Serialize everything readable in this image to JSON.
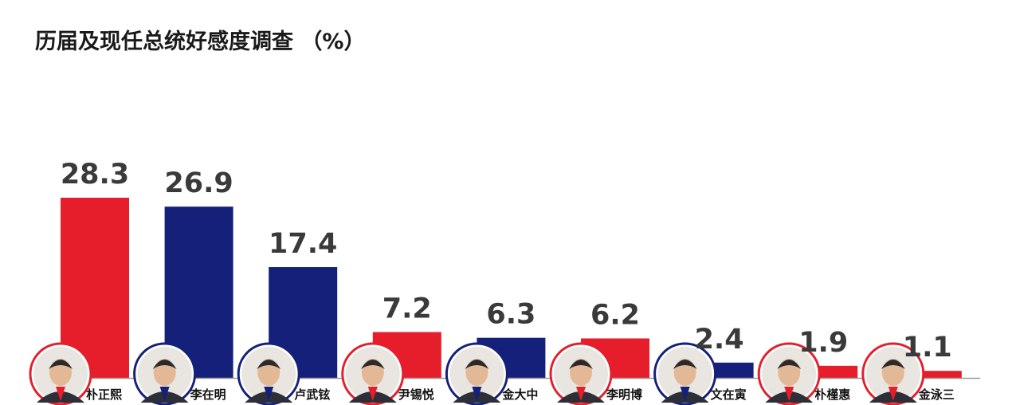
{
  "title": "历届及现任总统好感度调查 （%）",
  "colors": {
    "conservative": "#e61e2b",
    "progressive": "#14207a",
    "axis": "#9a9a9a"
  },
  "chart_data": {
    "type": "bar",
    "categories": [
      "朴正熙",
      "李在明",
      "卢武铉",
      "尹锡悦",
      "金大中",
      "李明博",
      "文在寅",
      "朴槿惠",
      "金泳三"
    ],
    "values": [
      28.3,
      26.9,
      17.4,
      7.2,
      6.3,
      6.2,
      2.4,
      1.9,
      1.1
    ],
    "value_labels": [
      "28.3",
      "26.9",
      "17.4",
      "7.2",
      "6.3",
      "6.2",
      "2.4",
      "1.9",
      "1.1"
    ],
    "bar_colors": [
      "#e61e2b",
      "#14207a",
      "#14207a",
      "#e61e2b",
      "#14207a",
      "#e61e2b",
      "#14207a",
      "#e61e2b",
      "#e61e2b"
    ],
    "ylim": [
      0,
      30
    ],
    "grid": false,
    "legend": "none"
  }
}
